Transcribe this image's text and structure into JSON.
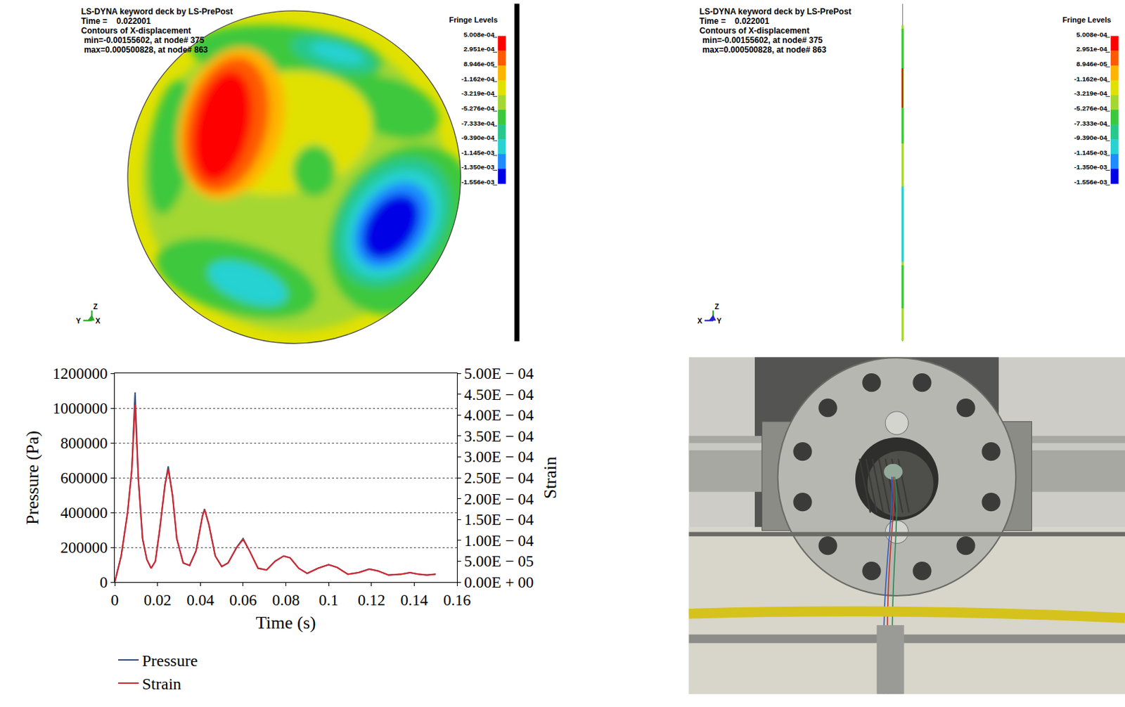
{
  "panels": [
    {
      "header": [
        "LS-DYNA keyword deck by LS-PrePost",
        "Time =    0.022001",
        "Contours of X-displacement",
        "min=-0.00155602, at node# 375",
        "max=0.000500828, at node# 863"
      ],
      "fringe_levels": {
        "title": "Fringe Levels",
        "labels": [
          "5.008e-04",
          "2.951e-04",
          "8.946e-05",
          "-1.162e-04",
          "-3.219e-04",
          "-5.276e-04",
          "-7.333e-04",
          "-9.390e-04",
          "-1.145e-03",
          "-1.350e-03",
          "-1.556e-03"
        ],
        "colors": [
          "#ff0000",
          "#ff5a00",
          "#ffb400",
          "#e1e100",
          "#a5d732",
          "#3cc83c",
          "#28c88c",
          "#28d2d2",
          "#1e8cff",
          "#0000e6"
        ]
      },
      "triad": [
        "Z",
        "Y",
        "X"
      ]
    },
    {
      "header": [
        "LS-DYNA keyword deck by LS-PrePost",
        "Time =    0.022001",
        "Contours of X-displacement",
        "min=-0.00155602, at node# 375",
        "max=0.000500828, at node# 863"
      ],
      "fringe_levels": {
        "title": "Fringe Levels",
        "labels": [
          "5.008e-04",
          "2.951e-04",
          "8.946e-05",
          "-1.162e-04",
          "-3.219e-04",
          "-5.276e-04",
          "-7.333e-04",
          "-9.390e-04",
          "-1.145e-03",
          "-1.350e-03",
          "-1.556e-03"
        ],
        "colors": [
          "#ff0000",
          "#ff5a00",
          "#ffb400",
          "#e1e100",
          "#a5d732",
          "#3cc83c",
          "#28c88c",
          "#28d2d2",
          "#1e8cff",
          "#0000e6"
        ]
      },
      "triad": [
        "Z",
        "X",
        "Y"
      ]
    }
  ],
  "chart_data": {
    "type": "line",
    "x_label": "Time (s)",
    "y_label": "Pressure (Pa)",
    "y2_label": "Strain",
    "x": [
      0,
      0.003,
      0.006,
      0.008,
      0.0095,
      0.011,
      0.013,
      0.015,
      0.017,
      0.019,
      0.021,
      0.0235,
      0.025,
      0.027,
      0.029,
      0.032,
      0.035,
      0.038,
      0.041,
      0.042,
      0.044,
      0.047,
      0.05,
      0.053,
      0.057,
      0.06,
      0.063,
      0.067,
      0.071,
      0.075,
      0.079,
      0.082,
      0.086,
      0.09,
      0.095,
      0.1,
      0.104,
      0.109,
      0.114,
      0.119,
      0.123,
      0.128,
      0.134,
      0.138,
      0.142,
      0.146,
      0.15
    ],
    "series": [
      {
        "name": "Pressure",
        "color": "#34507a",
        "values": [
          0,
          150000,
          400000,
          650000,
          1090000,
          600000,
          250000,
          130000,
          80000,
          120000,
          300000,
          560000,
          665000,
          500000,
          250000,
          110000,
          95000,
          180000,
          380000,
          420000,
          330000,
          150000,
          90000,
          110000,
          200000,
          250000,
          180000,
          80000,
          70000,
          120000,
          150000,
          140000,
          80000,
          50000,
          80000,
          100000,
          85000,
          45000,
          55000,
          75000,
          65000,
          40000,
          45000,
          55000,
          45000,
          40000,
          45000
        ]
      },
      {
        "name": "Strain",
        "color": "#d7262e",
        "axis": "y2",
        "values": [
          0,
          6.25e-05,
          0.000167,
          0.000271,
          0.000425,
          0.00025,
          0.000104,
          5.4e-05,
          3.3e-05,
          5e-05,
          0.000125,
          0.000233,
          0.00027,
          0.000208,
          0.000104,
          4.6e-05,
          4e-05,
          7.5e-05,
          0.000158,
          0.000173,
          0.000138,
          6.25e-05,
          3.75e-05,
          4.6e-05,
          8.3e-05,
          0.000102,
          7.5e-05,
          3.3e-05,
          2.9e-05,
          5e-05,
          6.25e-05,
          5.8e-05,
          3.3e-05,
          2.1e-05,
          3.3e-05,
          4.2e-05,
          3.5e-05,
          1.9e-05,
          2.3e-05,
          3.1e-05,
          2.7e-05,
          1.7e-05,
          1.9e-05,
          2.3e-05,
          1.9e-05,
          1.7e-05,
          1.9e-05
        ]
      }
    ],
    "xlim": [
      0,
      0.16
    ],
    "xticks": [
      0,
      0.02,
      0.04,
      0.06,
      0.08,
      0.1,
      0.12,
      0.14,
      0.16
    ],
    "ylim": [
      0,
      1200000
    ],
    "yticks": [
      0,
      200000,
      400000,
      600000,
      800000,
      1000000,
      1200000
    ],
    "y2lim": [
      0,
      0.0005
    ],
    "y2ticks": [
      {
        "value": 0,
        "label": "0.00E + 00"
      },
      {
        "value": 5e-05,
        "label": "5.00E − 05"
      },
      {
        "value": 0.0001,
        "label": "1.00E − 04"
      },
      {
        "value": 0.00015,
        "label": "1.50E − 04"
      },
      {
        "value": 0.0002,
        "label": "2.00E − 04"
      },
      {
        "value": 0.00025,
        "label": "2.50E − 04"
      },
      {
        "value": 0.0003,
        "label": "3.00E − 04"
      },
      {
        "value": 0.00035,
        "label": "3.50E − 04"
      },
      {
        "value": 0.0004,
        "label": "4.00E − 04"
      },
      {
        "value": 0.00045,
        "label": "4.50E − 04"
      },
      {
        "value": 0.0005,
        "label": "5.00E − 04"
      }
    ],
    "grid": true,
    "legend": "bottom left"
  }
}
